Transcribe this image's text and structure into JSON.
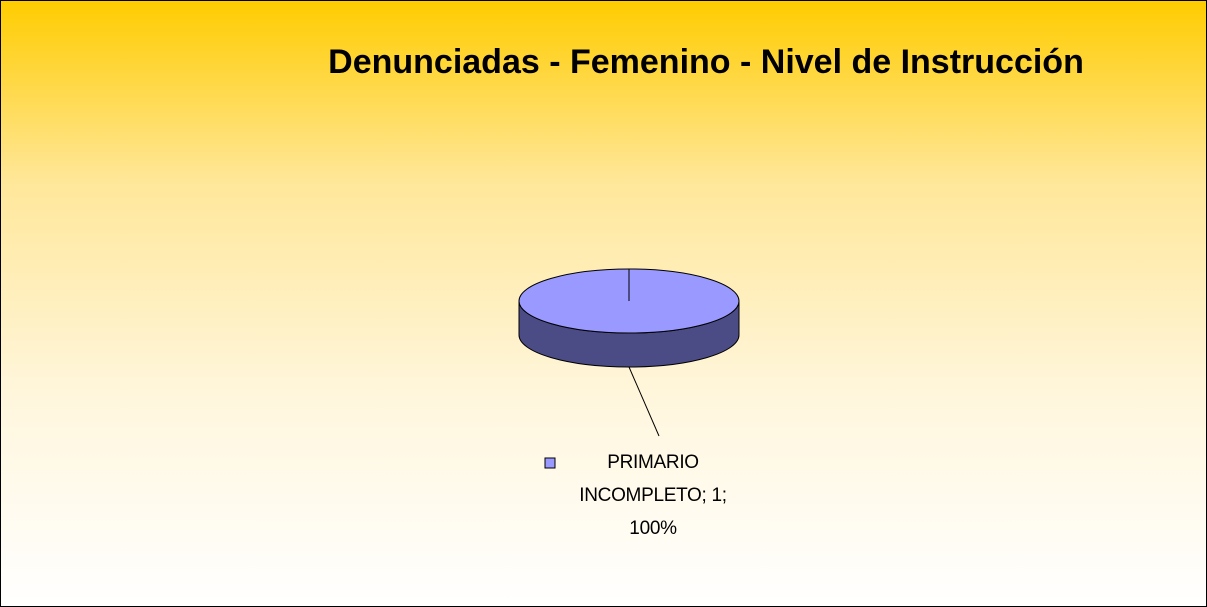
{
  "chart_data": {
    "type": "pie",
    "title": "Denunciadas - Femenino - Nivel de Instrucción",
    "values": [
      1
    ],
    "value_labels": [
      "PRIMARIO INCOMPLETO; 1; 100%"
    ],
    "colors": [
      "#9999ff"
    ],
    "side_colors": [
      "#4b4b85"
    ],
    "three_d": true
  }
}
